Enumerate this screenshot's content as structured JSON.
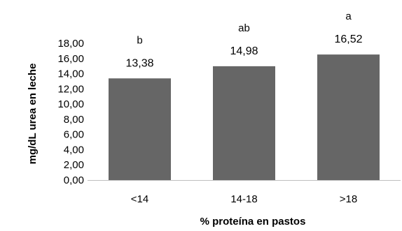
{
  "chart_data": {
    "type": "bar",
    "categories": [
      "<14",
      "14-18",
      ">18"
    ],
    "values": [
      13.38,
      14.98,
      16.52
    ],
    "value_labels": [
      "13,38",
      "14,98",
      "16,52"
    ],
    "significance_letters": [
      "b",
      "ab",
      "a"
    ],
    "xlabel": "% proteína en pastos",
    "ylabel": "mg/dL urea en leche",
    "ylim": [
      0,
      18
    ],
    "y_ticks": [
      0,
      2,
      4,
      6,
      8,
      10,
      12,
      14,
      16,
      18
    ],
    "y_tick_labels": [
      "0,00",
      "2,00",
      "4,00",
      "6,00",
      "8,00",
      "10,00",
      "12,00",
      "14,00",
      "16,00",
      "18,00"
    ],
    "bar_color": "#666666",
    "grid": false,
    "legend": "none"
  }
}
